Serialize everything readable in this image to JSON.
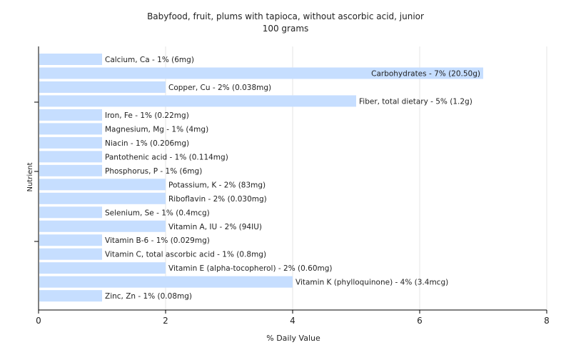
{
  "chart_data": {
    "type": "bar",
    "orientation": "horizontal",
    "title": "Babyfood, fruit, plums with tapioca, without ascorbic acid, junior",
    "subtitle": "100 grams",
    "xlabel": "% Daily Value",
    "ylabel": "Nutrient",
    "xlim": [
      0,
      8
    ],
    "xticks": [
      "0",
      "2",
      "4",
      "6",
      "8"
    ],
    "grid": true,
    "bar_color": "#c6deff",
    "grid_color": "#e6e6e6",
    "axis_color": "#000000",
    "bars": [
      {
        "value": 1,
        "label": "Calcium, Ca - 1% (6mg)"
      },
      {
        "value": 7,
        "label": "Carbohydrates - 7% (20.50g)"
      },
      {
        "value": 2,
        "label": "Copper, Cu - 2% (0.038mg)"
      },
      {
        "value": 5,
        "label": "Fiber, total dietary - 5% (1.2g)"
      },
      {
        "value": 1,
        "label": "Iron, Fe - 1% (0.22mg)"
      },
      {
        "value": 1,
        "label": "Magnesium, Mg - 1% (4mg)"
      },
      {
        "value": 1,
        "label": "Niacin - 1% (0.206mg)"
      },
      {
        "value": 1,
        "label": "Pantothenic acid - 1% (0.114mg)"
      },
      {
        "value": 1,
        "label": "Phosphorus, P - 1% (6mg)"
      },
      {
        "value": 2,
        "label": "Potassium, K - 2% (83mg)"
      },
      {
        "value": 2,
        "label": "Riboflavin - 2% (0.030mg)"
      },
      {
        "value": 1,
        "label": "Selenium, Se - 1% (0.4mcg)"
      },
      {
        "value": 2,
        "label": "Vitamin A, IU - 2% (94IU)"
      },
      {
        "value": 1,
        "label": "Vitamin B-6 - 1% (0.029mg)"
      },
      {
        "value": 1,
        "label": "Vitamin C, total ascorbic acid - 1% (0.8mg)"
      },
      {
        "value": 2,
        "label": "Vitamin E (alpha-tocopherol) - 2% (0.60mg)"
      },
      {
        "value": 4,
        "label": "Vitamin K (phylloquinone) - 4% (3.4mcg)"
      },
      {
        "value": 1,
        "label": "Zinc, Zn - 1% (0.08mg)"
      }
    ]
  }
}
